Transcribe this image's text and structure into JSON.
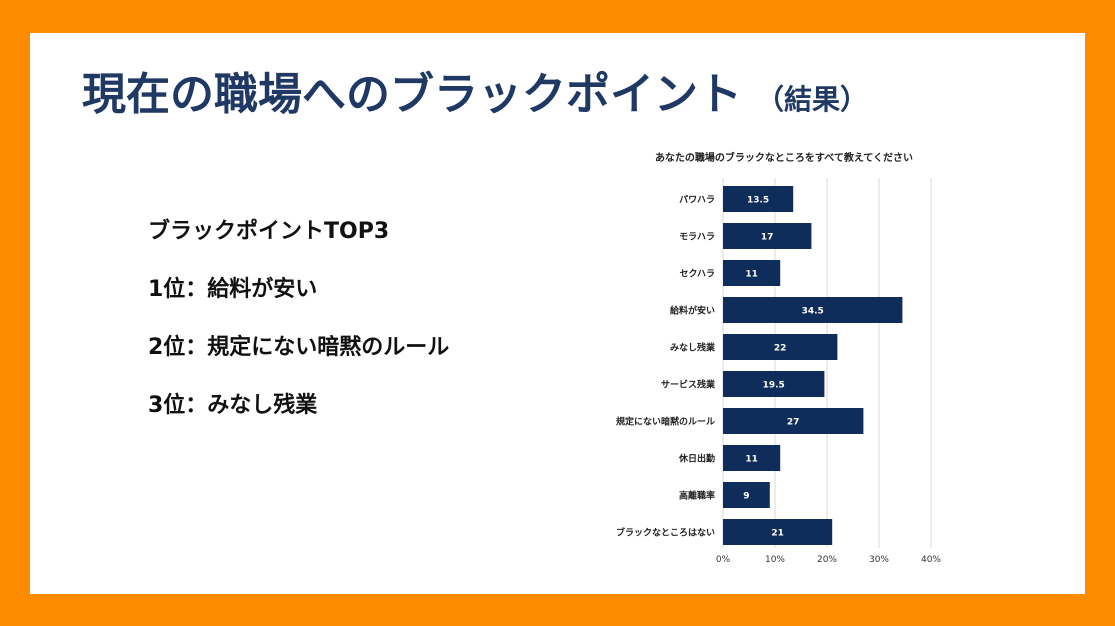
{
  "title": "現在の職場へのブラックポイント",
  "title_suffix": "（結果）",
  "top3": {
    "heading": "ブラックポイントTOP3",
    "items": [
      "1位：給料が安い",
      "2位：規定にない暗黙のルール",
      "3位：みなし残業"
    ]
  },
  "colors": {
    "border": "#FF8C00",
    "title": "#1F3864",
    "bar": "#0F2D5A",
    "grid": "#D9D9D9"
  },
  "chart_data": {
    "type": "bar",
    "orientation": "horizontal",
    "title": "あなたの職場のブラックなところをすべて教えてください",
    "categories": [
      "パワハラ",
      "モラハラ",
      "セクハラ",
      "給料が安い",
      "みなし残業",
      "サービス残業",
      "規定にない暗黙のルール",
      "休日出勤",
      "高離職率",
      "ブラックなところはない"
    ],
    "values": [
      13.5,
      17,
      11,
      34.5,
      22,
      19.5,
      27,
      11,
      9,
      21
    ],
    "data_labels": [
      "13.5",
      "17",
      "11",
      "34.5",
      "22",
      "19.5",
      "27",
      "11",
      "9",
      "21"
    ],
    "xlim": [
      0,
      40
    ],
    "xticks": [
      "0%",
      "10%",
      "20%",
      "30%",
      "40%"
    ],
    "grid": true,
    "legend": "none"
  }
}
